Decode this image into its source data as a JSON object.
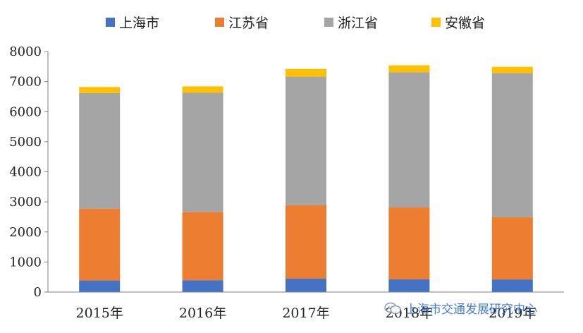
{
  "chart_data": {
    "type": "bar",
    "stacked": true,
    "categories": [
      "2015年",
      "2016年",
      "2017年",
      "2018年",
      "2019年"
    ],
    "series": [
      {
        "name": "上海市",
        "color": "#4472C4",
        "values": [
          385,
          395,
          445,
          425,
          420
        ]
      },
      {
        "name": "江苏省",
        "color": "#ED7D31",
        "values": [
          2385,
          2265,
          2445,
          2395,
          2070
        ]
      },
      {
        "name": "浙江省",
        "color": "#A5A5A5",
        "values": [
          3850,
          3970,
          4275,
          4490,
          4790
        ]
      },
      {
        "name": "安徽省",
        "color": "#FFC000",
        "values": [
          200,
          210,
          255,
          230,
          210
        ]
      }
    ],
    "ylim": [
      0,
      8000
    ],
    "yticks": [
      0,
      1000,
      2000,
      3000,
      4000,
      5000,
      6000,
      7000,
      8000
    ],
    "grid": false,
    "legend": "top"
  },
  "watermark": {
    "text": "上海市交通发展研究中心",
    "icon": "wechat-icon"
  }
}
